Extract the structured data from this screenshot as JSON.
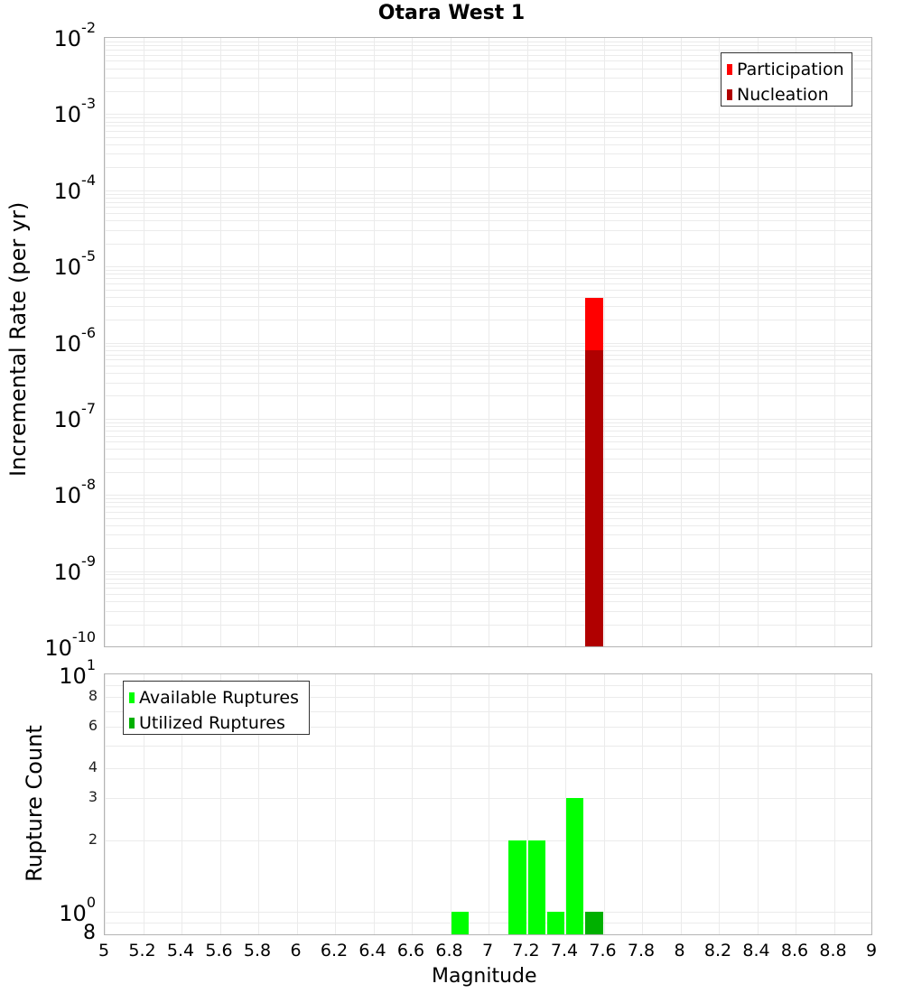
{
  "chart_data": [
    {
      "type": "bar",
      "title": "Otara West 1",
      "xlabel": "Magnitude",
      "ylabel": "Incremental Rate (per yr)",
      "yscale": "log",
      "ylim": [
        1e-10,
        0.01
      ],
      "xlim": [
        5,
        9
      ],
      "grid": true,
      "legend_position": "top-right",
      "y_tick_labels": [
        "10^-2",
        "10^-3",
        "10^-4",
        "10^-5",
        "10^-6",
        "10^-7",
        "10^-8",
        "10^-9",
        "10^-10"
      ],
      "x_tick_labels": [
        "5",
        "5.2",
        "5.4",
        "5.6",
        "5.8",
        "6",
        "6.2",
        "6.4",
        "6.6",
        "6.8",
        "7",
        "7.2",
        "7.4",
        "7.6",
        "7.8",
        "8",
        "8.2",
        "8.4",
        "8.6",
        "8.8",
        "9"
      ],
      "bin_width": 0.1,
      "series": [
        {
          "name": "Participation",
          "color": "#ff0000",
          "x": [
            7.55
          ],
          "values": [
            3.9e-06
          ]
        },
        {
          "name": "Nucleation",
          "color": "#b00000",
          "x": [
            7.55
          ],
          "values": [
            7.9e-07
          ]
        }
      ]
    },
    {
      "type": "bar",
      "title": "",
      "xlabel": "Magnitude",
      "ylabel": "Rupture Count",
      "yscale": "log",
      "ylim": [
        0.8,
        10
      ],
      "xlim": [
        5,
        9
      ],
      "grid": true,
      "legend_position": "top-left",
      "y_tick_labels": [
        "10^1",
        "8",
        "6",
        "4",
        "3",
        "2",
        "10^0",
        "8"
      ],
      "x_tick_labels": [
        "5",
        "5.2",
        "5.4",
        "5.6",
        "5.8",
        "6",
        "6.2",
        "6.4",
        "6.6",
        "6.8",
        "7",
        "7.2",
        "7.4",
        "7.6",
        "7.8",
        "8",
        "8.2",
        "8.4",
        "8.6",
        "8.8",
        "9"
      ],
      "bin_width": 0.1,
      "series": [
        {
          "name": "Available Ruptures",
          "color": "#00ff00",
          "x": [
            6.85,
            7.15,
            7.25,
            7.35,
            7.45,
            7.55
          ],
          "values": [
            1,
            2,
            2,
            1,
            3,
            1
          ]
        },
        {
          "name": "Utilized Ruptures",
          "color": "#00b000",
          "x": [
            7.55
          ],
          "values": [
            1
          ]
        }
      ]
    }
  ],
  "labels": {
    "title": "Otara West 1",
    "top_ylabel": "Incremental Rate (per yr)",
    "bottom_ylabel": "Rupture Count",
    "xlabel": "Magnitude",
    "legend_top": [
      "Participation",
      "Nucleation"
    ],
    "legend_bottom": [
      "Available Ruptures",
      "Utilized Ruptures"
    ]
  }
}
